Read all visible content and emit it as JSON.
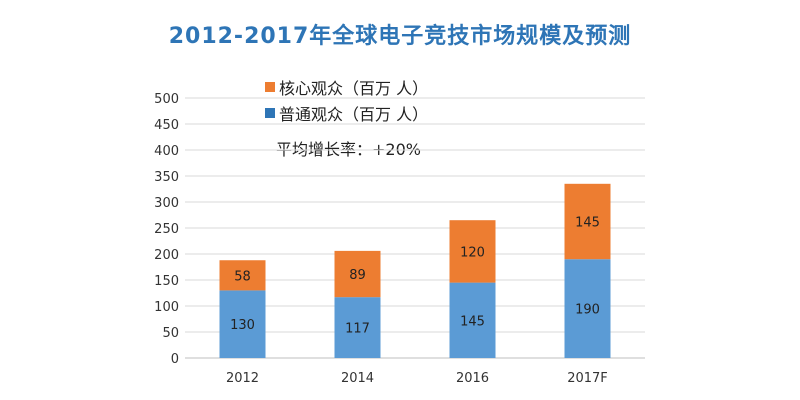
{
  "chart_data": {
    "type": "bar",
    "stacked": true,
    "title": "2012-2017年全球电子竞技市场规模及预测",
    "categories": [
      "2012",
      "2014",
      "2016",
      "2017F"
    ],
    "series": [
      {
        "name": "普通观众（百万 人）",
        "values": [
          130,
          117,
          145,
          190
        ],
        "color": "#5B9BD5"
      },
      {
        "name": "核心观众（百万 人）",
        "values": [
          58,
          89,
          120,
          145
        ],
        "color": "#ED7D31"
      }
    ],
    "ylim": [
      0,
      500
    ],
    "yticks": [
      0,
      50,
      100,
      150,
      200,
      250,
      300,
      350,
      400,
      450,
      500
    ],
    "grid": true,
    "xlabel": "",
    "ylabel": "",
    "annotation": "平均增长率：+20%",
    "legend_position": "top-left"
  }
}
